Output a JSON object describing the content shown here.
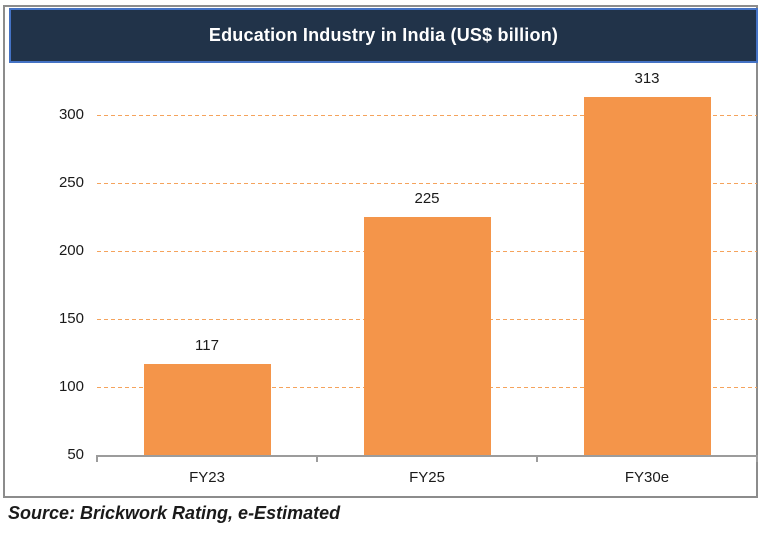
{
  "title": "Education Industry in India (US$ billion)",
  "source": "Source: Brickwork Rating, e-Estimated",
  "colors": {
    "title_bg": "#213349",
    "title_border": "#4472C4",
    "title_text": "#FFFFFF",
    "bar": "#F4954A",
    "gridline": "#F5A35C",
    "axis_line": "#9C9C9C",
    "frame_border": "#8C8C8C",
    "label_text": "#1A1A1A"
  },
  "chart_data": {
    "type": "bar",
    "title": "Education Industry in India (US$ billion)",
    "categories": [
      "FY23",
      "FY25",
      "FY30e"
    ],
    "values": [
      117,
      225,
      313
    ],
    "xlabel": "",
    "ylabel": "",
    "ylim": [
      50,
      330
    ],
    "yticks": [
      50,
      100,
      150,
      200,
      250,
      300
    ],
    "ytick_interval": 50,
    "grid": "horizontal-dashed-orange",
    "legend": "none",
    "data_labels": true,
    "source_note": "Source: Brickwork Rating, e-Estimated"
  }
}
